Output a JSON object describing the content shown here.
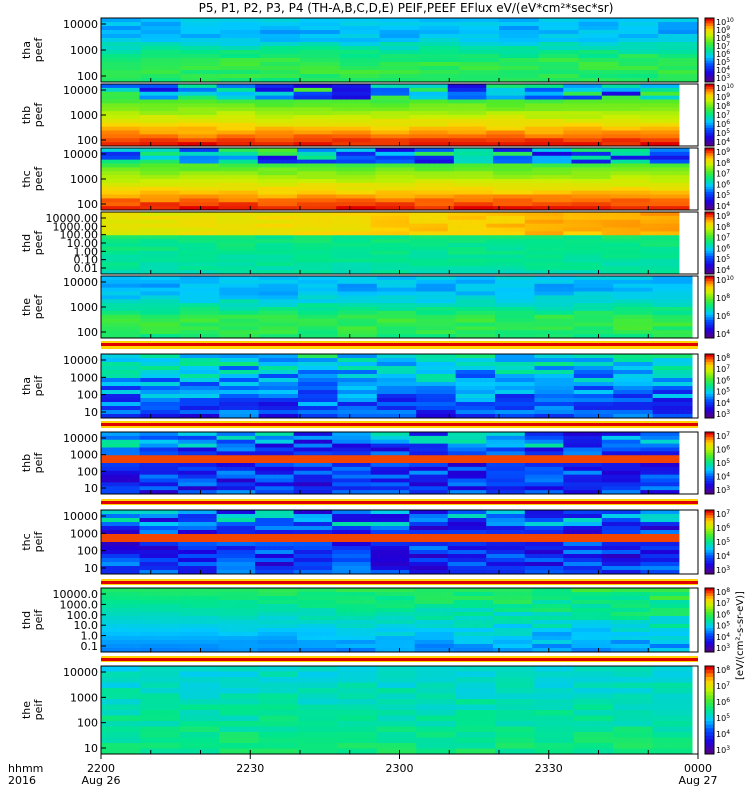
{
  "title": "P5, P1, P2, P3, P4 (TH-A,B,C,D,E) PEIF,PEEF EFlux eV/(eV*cm²*sec*sr)",
  "cb_label": "[eV/(cm²-s-sr-eV)]",
  "x_axis": {
    "row1_label": "hhmm",
    "row2_label": "2016",
    "ticks": [
      {
        "time": "2200",
        "date": "Aug 26"
      },
      {
        "time": "2230",
        "date": ""
      },
      {
        "time": "2300",
        "date": ""
      },
      {
        "time": "2330",
        "date": ""
      },
      {
        "time": "0000",
        "date": "Aug 27"
      }
    ]
  },
  "chart_data": [
    {
      "type": "heatmap",
      "probe": "tha",
      "species": "peef",
      "ylabel": [
        "tha",
        "peef"
      ],
      "yticks": [
        "10000",
        "1000",
        "100"
      ],
      "cb_ticks": [
        "10^10",
        "10^9",
        "10^8",
        "10^7",
        "10^6",
        "10^5",
        "10^4",
        "10^3"
      ],
      "color_range": [
        3,
        10
      ],
      "profile": "green",
      "data_end": 1.0
    },
    {
      "type": "heatmap",
      "probe": "thb",
      "species": "peef",
      "ylabel": [
        "thb",
        "peef"
      ],
      "yticks": [
        "10000",
        "1000",
        "100"
      ],
      "cb_ticks": [
        "10^10",
        "10^9",
        "10^8",
        "10^7",
        "10^6",
        "10^5",
        "10^4"
      ],
      "color_range": [
        4,
        10
      ],
      "profile": "hot",
      "data_end": 0.968
    },
    {
      "type": "heatmap",
      "probe": "thc",
      "species": "peef",
      "ylabel": [
        "thc",
        "peef"
      ],
      "yticks": [
        "10000",
        "1000",
        "100"
      ],
      "cb_ticks": [
        "10^9",
        "10^8",
        "10^7",
        "10^6",
        "10^5",
        "10^4"
      ],
      "color_range": [
        4,
        9
      ],
      "profile": "hot",
      "data_end": 0.985
    },
    {
      "type": "heatmap",
      "probe": "thd",
      "species": "peef",
      "ylabel": [
        "thd",
        "peef"
      ],
      "yticks": [
        "10000.00",
        "1000.00",
        "100.00",
        "10.00",
        "1.00",
        "0.10",
        "0.01"
      ],
      "cb_ticks": [
        "10^9",
        "10^8",
        "10^7",
        "10^6",
        "10^5",
        "10^4"
      ],
      "color_range": [
        4,
        9
      ],
      "profile": "thd_e",
      "data_end": 0.968
    },
    {
      "type": "heatmap",
      "probe": "the",
      "species": "peef",
      "ylabel": [
        "the",
        "peef"
      ],
      "yticks": [
        "10000",
        "1000",
        "100"
      ],
      "cb_ticks": [
        "10^10",
        "10^8",
        "10^6",
        "10^4"
      ],
      "color_range": [
        4,
        10
      ],
      "profile": "green",
      "data_end": 0.99
    },
    {
      "type": "heatmap",
      "probe": "tha",
      "species": "peif",
      "ylabel": [
        "tha",
        "peif"
      ],
      "yticks": [
        "10000",
        "1000",
        "100",
        "10"
      ],
      "cb_ticks": [
        "10^8",
        "10^7",
        "10^6",
        "10^5",
        "10^4",
        "10^3"
      ],
      "color_range": [
        3,
        8
      ],
      "profile": "ion",
      "data_end": 0.99
    },
    {
      "type": "heatmap",
      "probe": "thb",
      "species": "peif",
      "ylabel": [
        "thb",
        "peif"
      ],
      "yticks": [
        "10000",
        "1000",
        "100",
        "10"
      ],
      "cb_ticks": [
        "10^7",
        "10^6",
        "10^5",
        "10^4",
        "10^3"
      ],
      "color_range": [
        3,
        7
      ],
      "profile": "ionband",
      "data_end": 0.968
    },
    {
      "type": "heatmap",
      "probe": "thc",
      "species": "peif",
      "ylabel": [
        "thc",
        "peif"
      ],
      "yticks": [
        "10000",
        "1000",
        "100",
        "10"
      ],
      "cb_ticks": [
        "10^7",
        "10^6",
        "10^5",
        "10^4",
        "10^3"
      ],
      "color_range": [
        3,
        7
      ],
      "profile": "ionband",
      "data_end": 0.968
    },
    {
      "type": "heatmap",
      "probe": "thd",
      "species": "peif",
      "ylabel": [
        "thd",
        "peif"
      ],
      "yticks": [
        "10000.0",
        "1000.0",
        "100.0",
        "10.0",
        "1.0",
        "0.1"
      ],
      "cb_ticks": [
        "10^8",
        "10^7",
        "10^6",
        "10^5",
        "10^4",
        "10^3"
      ],
      "color_range": [
        3,
        8
      ],
      "profile": "thd_i",
      "data_end": 0.985
    },
    {
      "type": "heatmap",
      "probe": "the",
      "species": "peif",
      "ylabel": [
        "the",
        "peif"
      ],
      "yticks": [
        "10000",
        "1000",
        "100",
        "10"
      ],
      "cb_ticks": [
        "10^8",
        "10^7",
        "10^6",
        "10^5",
        "10^4",
        "10^3"
      ],
      "color_range": [
        3,
        8
      ],
      "profile": "iongreen",
      "data_end": 0.99
    }
  ]
}
